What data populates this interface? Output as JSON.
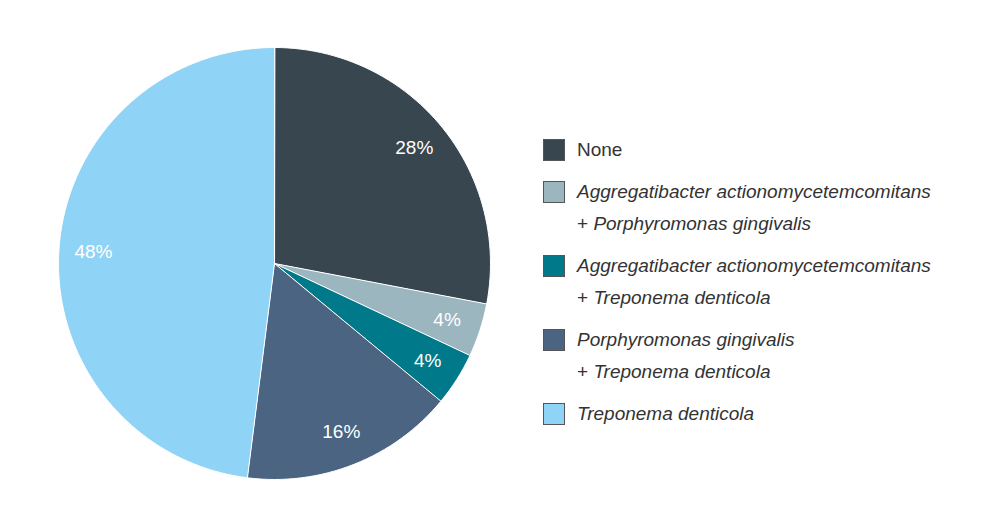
{
  "chart_data": {
    "type": "pie",
    "categories": [
      "None",
      "Aggregatibacter actionomycetemcomitans + Porphyromonas gingivalis",
      "Aggregatibacter actionomycetemcomitans + Treponema denticola",
      "Porphyromonas gingivalis + Treponema denticola",
      "Treponema denticola"
    ],
    "values": [
      28,
      4,
      4,
      16,
      48
    ],
    "value_labels": [
      "28%",
      "4%",
      "4%",
      "16%",
      "48%"
    ],
    "colors": [
      "#37464f",
      "#9bb6bf",
      "#007a8a",
      "#4a6482",
      "#8fd4f6"
    ],
    "data_labels": true,
    "legend": "right"
  }
}
